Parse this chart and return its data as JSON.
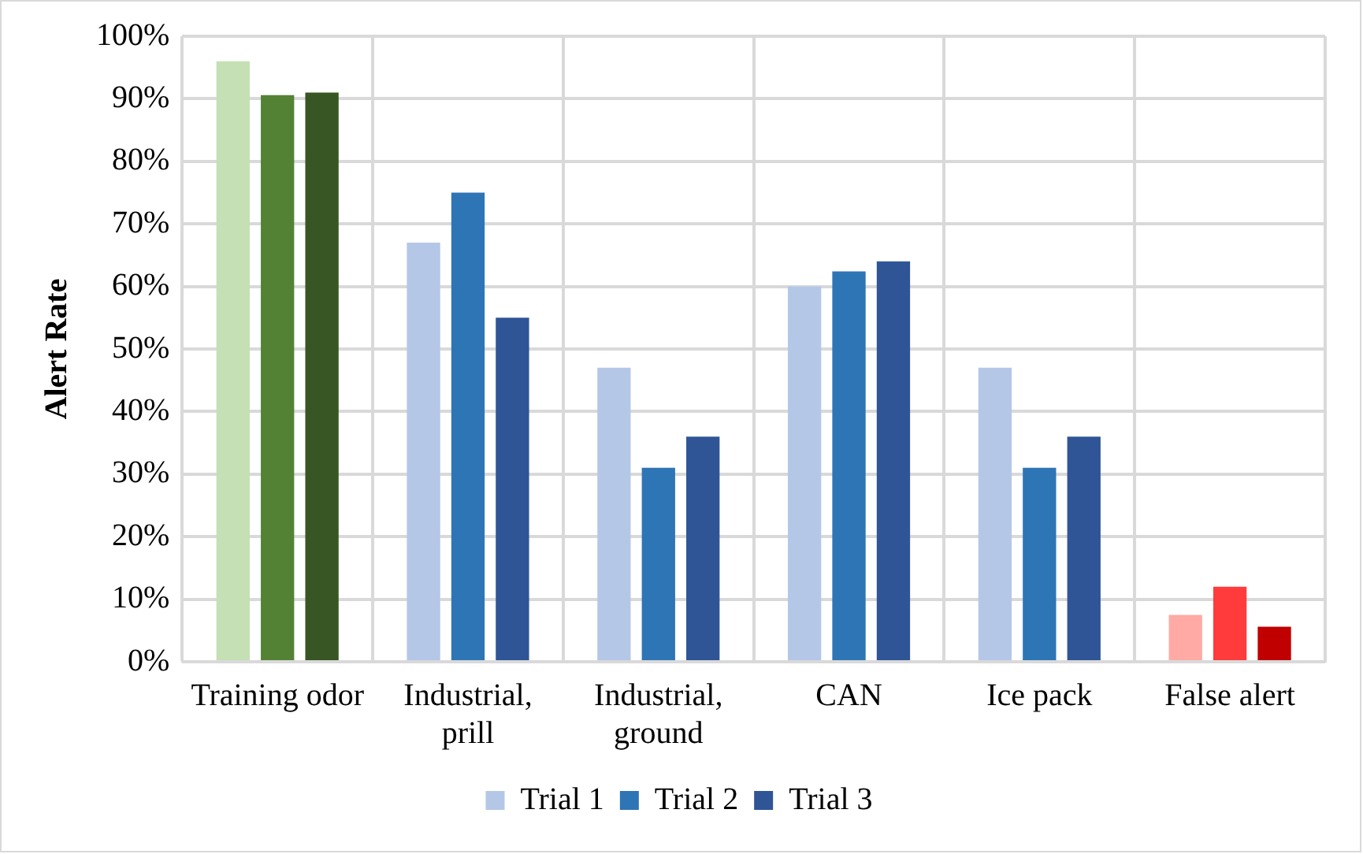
{
  "chart_data": {
    "type": "bar",
    "ylabel": "Alert Rate",
    "categories": [
      "Training odor",
      "Industrial, prill",
      "Industrial, ground",
      "CAN",
      "Ice pack",
      "False alert"
    ],
    "series": [
      {
        "name": "Trial 1",
        "color": "#b4c7e7",
        "colors": [
          "#c5e0b4",
          "#b4c7e7",
          "#b4c7e7",
          "#b4c7e7",
          "#b4c7e7",
          "#ffaaa5"
        ],
        "values": [
          96,
          67,
          47,
          60,
          47,
          7.5
        ]
      },
      {
        "name": "Trial 2",
        "color": "#2e75b6",
        "colors": [
          "#548235",
          "#2e75b6",
          "#2e75b6",
          "#2e75b6",
          "#2e75b6",
          "#ff3b3b"
        ],
        "values": [
          90.6,
          75,
          31,
          62.4,
          31,
          12
        ]
      },
      {
        "name": "Trial 3",
        "color": "#2f5597",
        "colors": [
          "#375623",
          "#2f5597",
          "#2f5597",
          "#2f5597",
          "#2f5597",
          "#c00000"
        ],
        "values": [
          91,
          55,
          36,
          64,
          36,
          5.6
        ]
      }
    ],
    "ylim": [
      0,
      100
    ],
    "yticks": [
      {
        "value": 0,
        "label": "0%"
      },
      {
        "value": 10,
        "label": "10%"
      },
      {
        "value": 20,
        "label": "20%"
      },
      {
        "value": 30,
        "label": "30%"
      },
      {
        "value": 40,
        "label": "40%"
      },
      {
        "value": 50,
        "label": "50%"
      },
      {
        "value": 60,
        "label": "60%"
      },
      {
        "value": 70,
        "label": "70%"
      },
      {
        "value": 80,
        "label": "80%"
      },
      {
        "value": 90,
        "label": "90%"
      },
      {
        "value": 100,
        "label": "100%"
      }
    ],
    "grid": true,
    "legend": "bottom"
  }
}
